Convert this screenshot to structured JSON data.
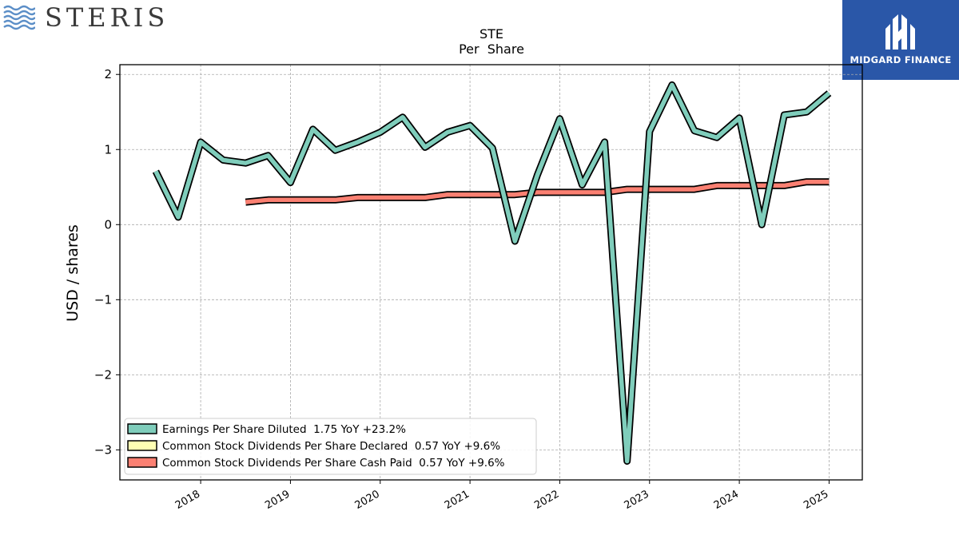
{
  "brand": {
    "name": "STERIS",
    "logo_icon": "waves-icon"
  },
  "partner": {
    "name": "MIDGARD FINANCE",
    "logo_icon": "mf-monogram-icon",
    "background": "#2a57a8"
  },
  "chart_data": {
    "type": "line",
    "title": "STE",
    "subtitle": "Per  Share",
    "xlabel": "",
    "ylabel": "USD / shares",
    "xlim": [
      2017.1,
      2025.37
    ],
    "ylim": [
      -3.4,
      2.13
    ],
    "yticks": [
      2,
      1,
      0,
      -1,
      -2,
      -3
    ],
    "ytick_labels": [
      "2",
      "1",
      "0",
      "−1",
      "−2",
      "−3"
    ],
    "xticks": [
      2018,
      2019,
      2020,
      2021,
      2022,
      2023,
      2024,
      2025
    ],
    "xtick_labels": [
      "2018",
      "2019",
      "2020",
      "2021",
      "2022",
      "2023",
      "2024",
      "2025"
    ],
    "grid": true,
    "legend_position": "lower-left",
    "series": [
      {
        "name": "Earnings Per Share Diluted",
        "legend_label": "Earnings Per Share Diluted  1.75 YoY +23.2%",
        "color": "#7fcdbb",
        "x": [
          2017.5,
          2017.75,
          2018.0,
          2018.25,
          2018.5,
          2018.75,
          2019.0,
          2019.25,
          2019.5,
          2019.75,
          2020.0,
          2020.25,
          2020.5,
          2020.75,
          2021.0,
          2021.25,
          2021.5,
          2021.75,
          2022.0,
          2022.25,
          2022.5,
          2022.75,
          2023.0,
          2023.25,
          2023.5,
          2023.75,
          2024.0,
          2024.25,
          2024.5,
          2024.75,
          2025.0
        ],
        "y": [
          0.71,
          0.1,
          1.1,
          0.86,
          0.82,
          0.92,
          0.56,
          1.27,
          0.99,
          1.1,
          1.23,
          1.43,
          1.03,
          1.23,
          1.32,
          1.02,
          -0.22,
          0.66,
          1.41,
          0.53,
          1.1,
          -3.15,
          1.24,
          1.86,
          1.25,
          1.16,
          1.42,
          0.0,
          1.46,
          1.5,
          1.75
        ]
      },
      {
        "name": "Common Stock Dividends Per Share Declared",
        "legend_label": "Common Stock Dividends Per Share Declared  0.57 YoY +9.6%",
        "color": "#ffffb3",
        "x": [],
        "y": []
      },
      {
        "name": "Common Stock Dividends Per Share Cash Paid",
        "legend_label": "Common Stock Dividends Per Share Cash Paid  0.57 YoY +9.6%",
        "color": "#fb8072",
        "x": [
          2018.5,
          2018.75,
          2019.0,
          2019.25,
          2019.5,
          2019.75,
          2020.0,
          2020.25,
          2020.5,
          2020.75,
          2021.0,
          2021.25,
          2021.5,
          2021.75,
          2022.0,
          2022.25,
          2022.5,
          2022.75,
          2023.0,
          2023.25,
          2023.5,
          2023.75,
          2024.0,
          2024.25,
          2024.5,
          2024.75,
          2025.0
        ],
        "y": [
          0.3,
          0.33,
          0.33,
          0.33,
          0.33,
          0.36,
          0.36,
          0.36,
          0.36,
          0.4,
          0.4,
          0.4,
          0.4,
          0.43,
          0.43,
          0.43,
          0.43,
          0.47,
          0.47,
          0.47,
          0.47,
          0.52,
          0.52,
          0.52,
          0.52,
          0.57,
          0.57
        ]
      }
    ]
  }
}
